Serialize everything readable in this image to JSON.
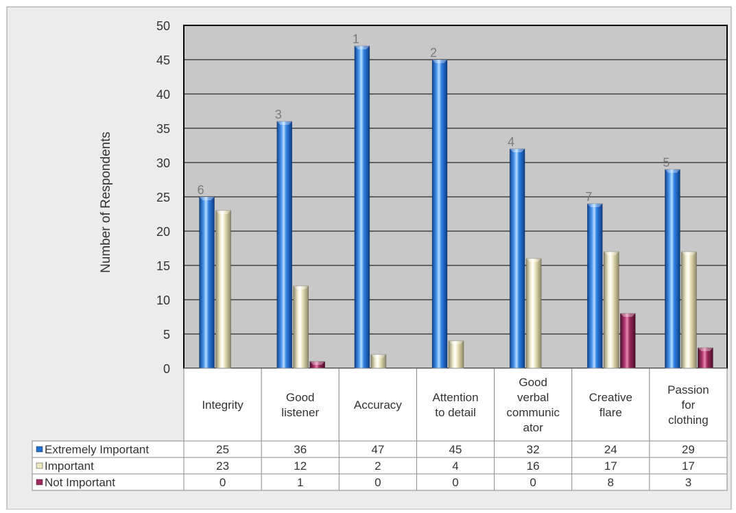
{
  "chart_data": {
    "type": "bar",
    "ylabel": "Number of Respondents",
    "ylim": [
      0,
      50
    ],
    "yticks": [
      0,
      5,
      10,
      15,
      20,
      25,
      30,
      35,
      40,
      45,
      50
    ],
    "grid": true,
    "categories": [
      [
        "Integrity"
      ],
      [
        "Good",
        "listener"
      ],
      [
        "Accuracy"
      ],
      [
        "Attention",
        "to detail"
      ],
      [
        "Good",
        "verbal",
        "communic",
        "ator"
      ],
      [
        "Creative",
        "flare"
      ],
      [
        "Passion",
        "for",
        "clothing"
      ]
    ],
    "series": [
      {
        "name": "Extremely Important",
        "values": [
          25,
          36,
          47,
          45,
          32,
          24,
          29
        ],
        "color": "#1f6fd1"
      },
      {
        "name": "Important",
        "values": [
          23,
          12,
          2,
          4,
          16,
          17,
          17
        ],
        "color": "#efe8bf"
      },
      {
        "name": "Not Important",
        "values": [
          0,
          1,
          0,
          0,
          0,
          8,
          3
        ],
        "color": "#a0285f"
      }
    ],
    "rank_labels": [
      "6",
      "3",
      "1",
      "2",
      "4",
      "7",
      "5"
    ],
    "data_table": true
  },
  "colors": {
    "plot_background": "#c8c8c8",
    "outer_background": "#ececec",
    "grid": "#000000",
    "table_text": "#333333",
    "rank_text": "#7a7a7a"
  }
}
